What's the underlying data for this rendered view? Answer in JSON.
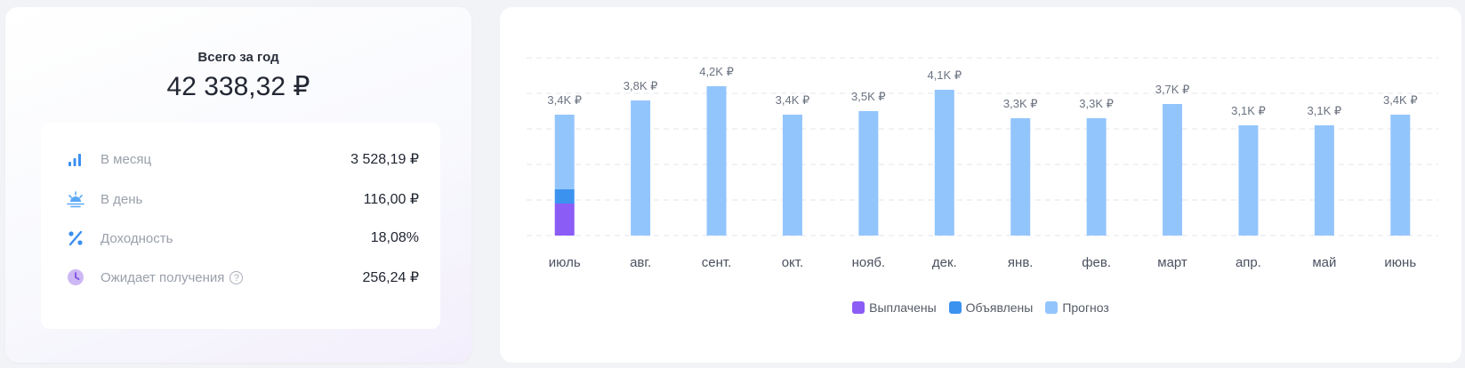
{
  "summary": {
    "year_label": "Всего за год",
    "year_total": "42 338,32 ₽",
    "stats": [
      {
        "label": "В месяц",
        "value": "3 528,19 ₽",
        "icon": "bar-chart-icon"
      },
      {
        "label": "В день",
        "value": "116,00 ₽",
        "icon": "sunrise-icon"
      },
      {
        "label": "Доходность",
        "value": "18,08%",
        "icon": "percent-icon"
      },
      {
        "label": "Ожидает получения",
        "value": "256,24 ₽",
        "icon": "clock-icon",
        "help": "?"
      }
    ]
  },
  "colors": {
    "paid": "#8b5cf6",
    "announced": "#3b93ef",
    "forecast": "#93c5fd",
    "grid": "#e3e6ec"
  },
  "chart_data": {
    "type": "bar",
    "categories": [
      "июль",
      "авг.",
      "сент.",
      "окт.",
      "нояб.",
      "дек.",
      "янв.",
      "фев.",
      "март",
      "апр.",
      "май",
      "июнь"
    ],
    "value_labels": [
      "3,4K ₽",
      "3,8K ₽",
      "4,2K ₽",
      "3,4K ₽",
      "3,5K ₽",
      "4,1K ₽",
      "3,3K ₽",
      "3,3K ₽",
      "3,7K ₽",
      "3,1K ₽",
      "3,1K ₽",
      "3,4K ₽"
    ],
    "series": [
      {
        "name": "Выплачены",
        "values": [
          900,
          0,
          0,
          0,
          0,
          0,
          0,
          0,
          0,
          0,
          0,
          0
        ]
      },
      {
        "name": "Объявлены",
        "values": [
          400,
          0,
          0,
          0,
          0,
          0,
          0,
          0,
          0,
          0,
          0,
          0
        ]
      },
      {
        "name": "Прогноз",
        "values": [
          2100,
          3800,
          4200,
          3400,
          3500,
          4100,
          3300,
          3300,
          3700,
          3100,
          3100,
          3400
        ]
      }
    ],
    "ylim": [
      0,
      5000
    ],
    "stacked": true,
    "grid": true,
    "legend_position": "bottom"
  }
}
